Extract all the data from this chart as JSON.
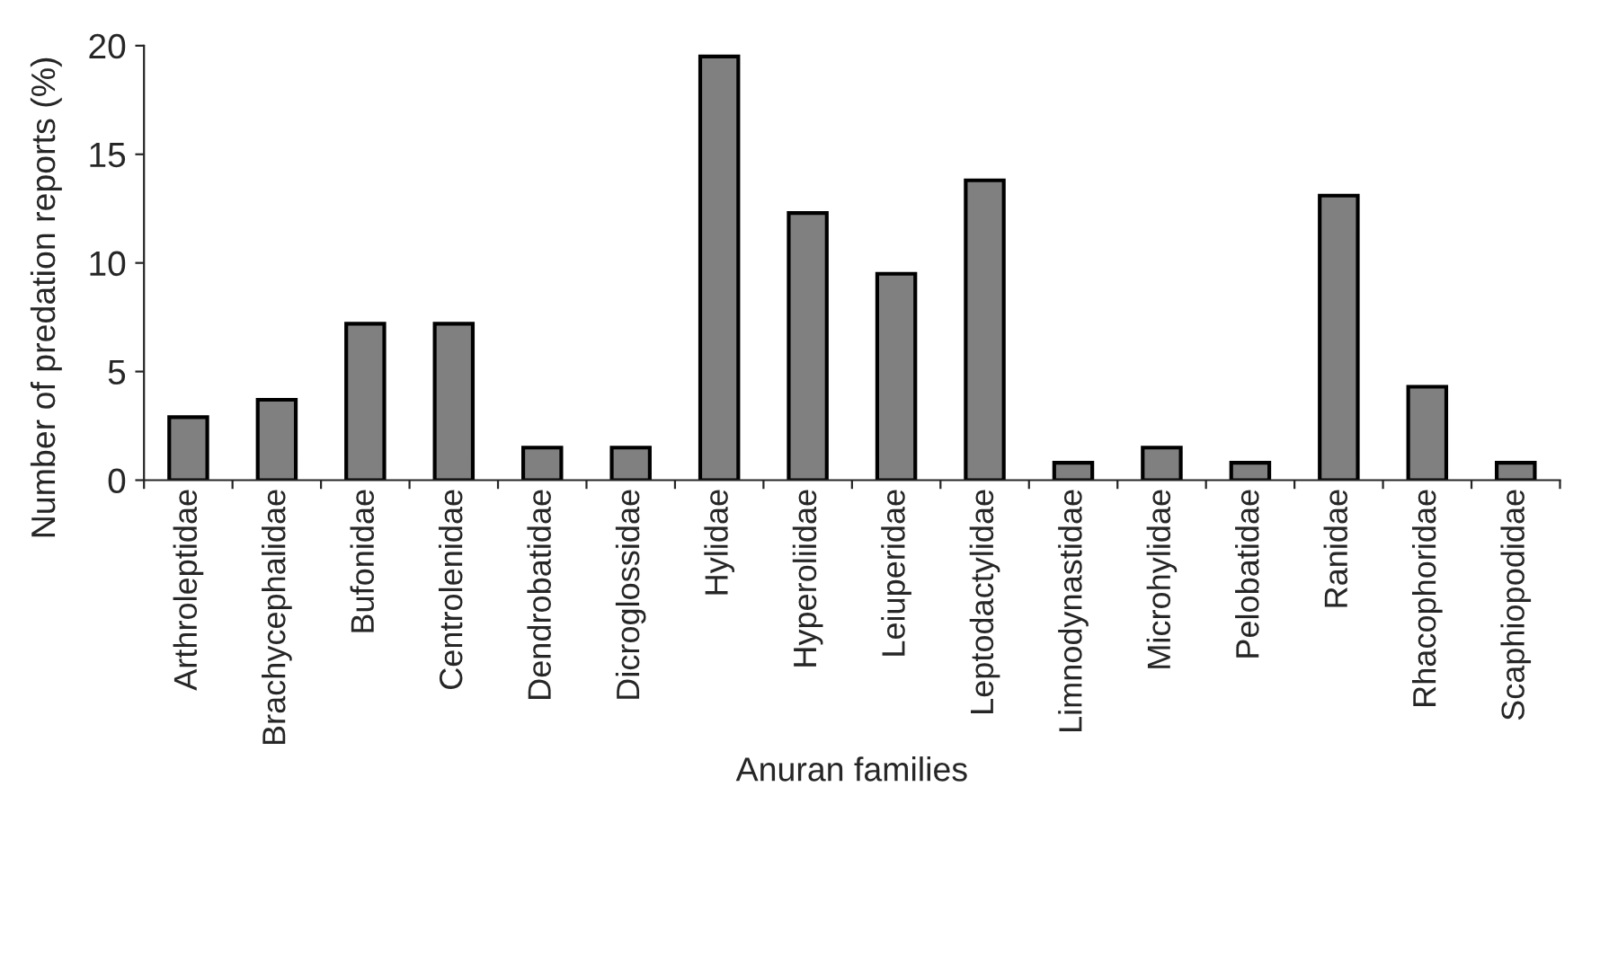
{
  "chart_data": {
    "type": "bar",
    "categories": [
      "Arthroleptidae",
      "Brachycephalidae",
      "Bufonidae",
      "Centrolenidae",
      "Dendrobatidae",
      "Dicroglossidae",
      "Hylidae",
      "Hyperoliidae",
      "Leiuperidae",
      "Leptodactylidae",
      "Limnodynastidae",
      "Microhylidae",
      "Pelobatidae",
      "Ranidae",
      "Rhacophoridae",
      "Scaphiopodidae"
    ],
    "values": [
      2.9,
      3.7,
      7.2,
      7.2,
      1.5,
      1.5,
      19.5,
      12.3,
      9.5,
      13.8,
      0.8,
      1.5,
      0.8,
      13.1,
      4.3,
      0.8
    ],
    "color": "#808080",
    "xlabel": "Anuran families",
    "ylabel": "Number of predation reports (%)",
    "ylim": [
      0,
      20
    ],
    "yticks": [
      0,
      5,
      10,
      15,
      20
    ],
    "grid": false,
    "legend": false
  }
}
